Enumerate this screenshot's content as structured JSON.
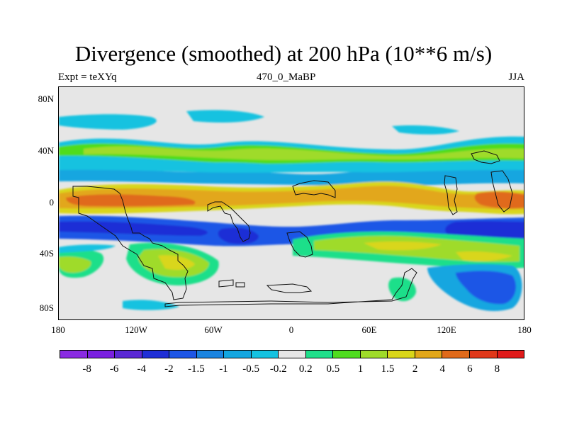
{
  "title": "Divergence (smoothed) at 200 hPa (10**6 m/s)",
  "left_string": "Expt = teXYq",
  "center_string": "470_0_MaBP",
  "right_string": "JJA",
  "lat_labels": [
    "80N",
    "40N",
    "0",
    "40S",
    "80S"
  ],
  "lon_labels": [
    "180",
    "120W",
    "60W",
    "0",
    "60E",
    "120E",
    "180"
  ],
  "colorbar": {
    "colors": [
      "#8a2be2",
      "#7a1fe0",
      "#5a28d4",
      "#1f2fd6",
      "#1e56e6",
      "#1a84e0",
      "#13a6e0",
      "#14c2e0",
      "#e6e6e6",
      "#1fdf8a",
      "#4fdc1f",
      "#9fdb2a",
      "#d9d61a",
      "#e2a71a",
      "#e06a1a",
      "#e0381a",
      "#e01a1a"
    ],
    "labels": [
      "-8",
      "-6",
      "-4",
      "-2",
      "-1.5",
      "-1",
      "-0.5",
      "-0.2",
      "0.2",
      "0.5",
      "1",
      "1.5",
      "2",
      "4",
      "6",
      "8"
    ]
  },
  "field_colors": {
    "background": "#e6e6e6",
    "light_positive": "#14c2e0",
    "cyan": "#13a6e0",
    "blue": "#1e56e6",
    "dark_blue": "#1f2fd6",
    "green": "#1fdf8a",
    "yellow_green": "#4fdc1f",
    "lime": "#9fdb2a",
    "yellow": "#d9d61a",
    "orange": "#e2a71a",
    "red_orange": "#e06a1a",
    "coastline": "#111111"
  }
}
